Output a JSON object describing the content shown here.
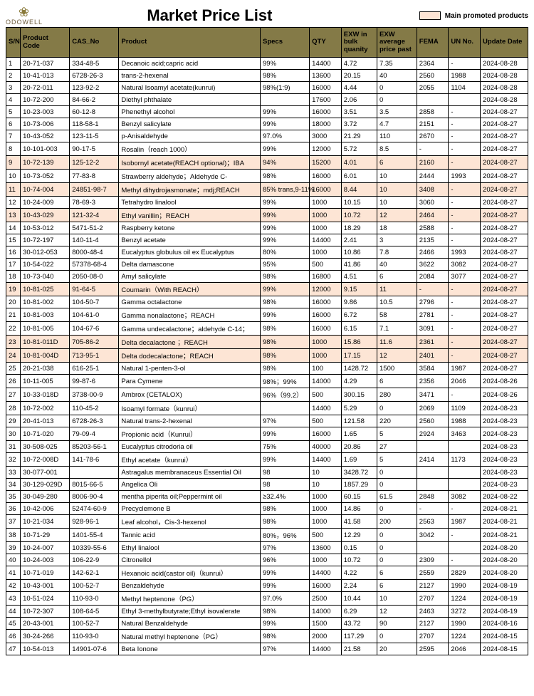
{
  "brand": "ODOWELL",
  "title": "Market Price List",
  "legend": "Main promoted products",
  "colors": {
    "header_bg": "#847a47",
    "highlight_bg": "#fde5d5",
    "border": "#000000",
    "page_bg": "#ffffff"
  },
  "columns": [
    "S/N",
    "Product Code",
    "CAS_No",
    "Product",
    "Specs",
    "QTY",
    "EXW in bulk quanity",
    "EXW average price past",
    "FEMA",
    "UN No.",
    "Update Date"
  ],
  "rows": [
    {
      "hl": false,
      "c": [
        "1",
        "20-71-037",
        "334-48-5",
        "Decanoic acid;capric acid",
        "99%",
        "14400",
        "4.72",
        "7.35",
        "2364",
        "-",
        "2024-08-28"
      ]
    },
    {
      "hl": false,
      "c": [
        "2",
        "10-41-013",
        "6728-26-3",
        "trans-2-hexenal",
        "98%",
        "13600",
        "20.15",
        "40",
        "2560",
        "1988",
        "2024-08-28"
      ]
    },
    {
      "hl": false,
      "c": [
        "3",
        "20-72-011",
        "123-92-2",
        "Natural Isoamyl acetate(kunrui)",
        "98%(1:9)",
        "16000",
        "4.44",
        "0",
        "2055",
        "1104",
        "2024-08-28"
      ]
    },
    {
      "hl": false,
      "c": [
        "4",
        "10-72-200",
        "84-66-2",
        "Diethyl phthalate",
        "",
        "17600",
        "2.06",
        "0",
        "",
        "",
        "2024-08-28"
      ]
    },
    {
      "hl": false,
      "c": [
        "5",
        "10-23-003",
        "60-12-8",
        "Phenethyl alcohol",
        "99%",
        "16000",
        "3.51",
        "3.5",
        "2858",
        "-",
        "2024-08-27"
      ]
    },
    {
      "hl": false,
      "c": [
        "6",
        "10-73-006",
        "118-58-1",
        "Benzyl salicylate",
        "99%",
        "18000",
        "3.72",
        "4.7",
        "2151",
        "-",
        "2024-08-27"
      ]
    },
    {
      "hl": false,
      "c": [
        "7",
        "10-43-052",
        "123-11-5",
        "p-Anisaldehyde",
        "97.0%",
        "3000",
        "21.29",
        "110",
        "2670",
        "-",
        "2024-08-27"
      ]
    },
    {
      "hl": false,
      "c": [
        "8",
        "10-101-003",
        "90-17-5",
        "Rosalin（reach 1000）",
        "99%",
        "12000",
        "5.72",
        "8.5",
        "-",
        "-",
        "2024-08-27"
      ]
    },
    {
      "hl": true,
      "c": [
        "9",
        "10-72-139",
        "125-12-2",
        "Isobornyl acetate(REACH optional)；IBA",
        "94%",
        "15200",
        "4.01",
        "6",
        "2160",
        "-",
        "2024-08-27"
      ]
    },
    {
      "hl": false,
      "c": [
        "10",
        "10-73-052",
        "77-83-8",
        "Strawberry aldehyde；Aldehyde C-",
        "98%",
        "16000",
        "6.01",
        "10",
        "2444",
        "1993",
        "2024-08-27"
      ]
    },
    {
      "hl": true,
      "c": [
        "11",
        "10-74-004",
        "24851-98-7",
        "Methyl dihydrojasmonate；mdj;REACH",
        "85% trans,9-11%",
        "16000",
        "8.44",
        "10",
        "3408",
        "-",
        "2024-08-27"
      ]
    },
    {
      "hl": false,
      "c": [
        "12",
        "10-24-009",
        "78-69-3",
        "Tetrahydro linalool",
        "99%",
        "1000",
        "10.15",
        "10",
        "3060",
        "-",
        "2024-08-27"
      ]
    },
    {
      "hl": true,
      "c": [
        "13",
        "10-43-029",
        "121-32-4",
        "Ethyl vanillin；REACH",
        "99%",
        "1000",
        "10.72",
        "12",
        "2464",
        "-",
        "2024-08-27"
      ]
    },
    {
      "hl": false,
      "c": [
        "14",
        "10-53-012",
        "5471-51-2",
        "Raspberry ketone",
        "99%",
        "1000",
        "18.29",
        "18",
        "2588",
        "-",
        "2024-08-27"
      ]
    },
    {
      "hl": false,
      "c": [
        "15",
        "10-72-197",
        "140-11-4",
        "Benzyl acetate",
        "99%",
        "14400",
        "2.41",
        "3",
        "2135",
        "-",
        "2024-08-27"
      ]
    },
    {
      "hl": false,
      "c": [
        "16",
        "30-012-053",
        "8000-48-4",
        "Eucalyptus globulus oil ex Eucalyptus",
        "80%",
        "1000",
        "10.86",
        "7.8",
        "2466",
        "1993",
        "2024-08-27"
      ]
    },
    {
      "hl": false,
      "c": [
        "17",
        "10-54-022",
        "57378-68-4",
        "Delta damascone",
        "95%",
        "500",
        "41.86",
        "40",
        "3622",
        "3082",
        "2024-08-27"
      ]
    },
    {
      "hl": false,
      "c": [
        "18",
        "10-73-040",
        "2050-08-0",
        "Amyl salicylate",
        "98%",
        "16800",
        "4.51",
        "6",
        "2084",
        "3077",
        "2024-08-27"
      ]
    },
    {
      "hl": true,
      "c": [
        "19",
        "10-81-025",
        "91-64-5",
        "Coumarin（With REACH）",
        "99%",
        "12000",
        "9.15",
        "11",
        "-",
        "-",
        "2024-08-27"
      ]
    },
    {
      "hl": false,
      "c": [
        "20",
        "10-81-002",
        "104-50-7",
        "Gamma octalactone",
        "98%",
        "16000",
        "9.86",
        "10.5",
        "2796",
        "-",
        "2024-08-27"
      ]
    },
    {
      "hl": false,
      "c": [
        "21",
        "10-81-003",
        "104-61-0",
        "Gamma nonalactone；REACH",
        "99%",
        "16000",
        "6.72",
        "58",
        "2781",
        "-",
        "2024-08-27"
      ]
    },
    {
      "hl": false,
      "c": [
        "22",
        "10-81-005",
        "104-67-6",
        "Gamma undecalactone；aldehyde C-14；",
        "98%",
        "16000",
        "6.15",
        "7.1",
        "3091",
        "-",
        "2024-08-27"
      ]
    },
    {
      "hl": true,
      "c": [
        "23",
        "10-81-011D",
        "705-86-2",
        "Delta decalactone ；REACH",
        "98%",
        "1000",
        "15.86",
        "11.6",
        "2361",
        "-",
        "2024-08-27"
      ]
    },
    {
      "hl": true,
      "c": [
        "24",
        "10-81-004D",
        "713-95-1",
        "Delta dodecalactone；REACH",
        "98%",
        "1000",
        "17.15",
        "12",
        "2401",
        "-",
        "2024-08-27"
      ]
    },
    {
      "hl": false,
      "c": [
        "25",
        "20-21-038",
        "616-25-1",
        "Natural 1-penten-3-ol",
        "98%",
        "100",
        "1428.72",
        "1500",
        "3584",
        "1987",
        "2024-08-27"
      ]
    },
    {
      "hl": false,
      "c": [
        "26",
        "10-11-005",
        "99-87-6",
        "Para Cymene",
        "98%；99%",
        "14000",
        "4.29",
        "6",
        "2356",
        "2046",
        "2024-08-26"
      ]
    },
    {
      "hl": false,
      "c": [
        "27",
        "10-33-018D",
        "3738-00-9",
        "Ambrox (CETALOX)",
        "96%（99.2）",
        "500",
        "300.15",
        "280",
        "3471",
        "-",
        "2024-08-26"
      ]
    },
    {
      "hl": false,
      "c": [
        "28",
        "10-72-002",
        "110-45-2",
        "Isoamyl formate（kunrui）",
        "",
        "14400",
        "5.29",
        "0",
        "2069",
        "1109",
        "2024-08-23"
      ]
    },
    {
      "hl": false,
      "c": [
        "29",
        "20-41-013",
        "6728-26-3",
        "Natural trans-2-hexenal",
        "97%",
        "500",
        "121.58",
        "220",
        "2560",
        "1988",
        "2024-08-23"
      ]
    },
    {
      "hl": false,
      "c": [
        "30",
        "10-71-020",
        "79-09-4",
        "Propionic acid（Kunrui）",
        "99%",
        "16000",
        "1.65",
        "5",
        "2924",
        "3463",
        "2024-08-23"
      ]
    },
    {
      "hl": false,
      "c": [
        "31",
        "30-508-025",
        "85203-56-1",
        "Eucalyptus citrodoria oil",
        "75%",
        "40000",
        "20.86",
        "27",
        "",
        "",
        "2024-08-23"
      ]
    },
    {
      "hl": false,
      "c": [
        "32",
        "10-72-008D",
        "141-78-6",
        "Ethyl acetate（kunrui）",
        "99%",
        "14400",
        "1.69",
        "5",
        "2414",
        "1173",
        "2024-08-23"
      ]
    },
    {
      "hl": false,
      "c": [
        "33",
        "30-077-001",
        "",
        "Astragalus membranaceus Essential Oil",
        "98",
        "10",
        "3428.72",
        "0",
        "",
        "",
        "2024-08-23"
      ]
    },
    {
      "hl": false,
      "c": [
        "34",
        "30-129-029D",
        "8015-66-5",
        "Angelica Oli",
        "98",
        "10",
        "1857.29",
        "0",
        "",
        "",
        "2024-08-23"
      ]
    },
    {
      "hl": false,
      "c": [
        "35",
        "30-049-280",
        "8006-90-4",
        "mentha piperita oil;Peppermint oil",
        "≥32.4%",
        "1000",
        "60.15",
        "61.5",
        "2848",
        "3082",
        "2024-08-22"
      ]
    },
    {
      "hl": false,
      "c": [
        "36",
        "10-42-006",
        "52474-60-9",
        "Precyclemone B",
        "98%",
        "1000",
        "14.86",
        "0",
        "-",
        "-",
        "2024-08-21"
      ]
    },
    {
      "hl": false,
      "c": [
        "37",
        "10-21-034",
        "928-96-1",
        "Leaf alcohol，Cis-3-hexenol",
        "98%",
        "1000",
        "41.58",
        "200",
        "2563",
        "1987",
        "2024-08-21"
      ]
    },
    {
      "hl": false,
      "c": [
        "38",
        "10-71-29",
        "1401-55-4",
        "Tannic acid",
        "80%，96%",
        "500",
        "12.29",
        "0",
        "3042",
        "-",
        "2024-08-21"
      ]
    },
    {
      "hl": false,
      "c": [
        "39",
        "10-24-007",
        "10339-55-6",
        "Ethyl linalool",
        "97%",
        "13600",
        "0.15",
        "0",
        "",
        "",
        "2024-08-20"
      ]
    },
    {
      "hl": false,
      "c": [
        "40",
        "10-24-003",
        "106-22-9",
        "Citronellol",
        "96%",
        "1000",
        "10.72",
        "0",
        "2309",
        "-",
        "2024-08-20"
      ]
    },
    {
      "hl": false,
      "c": [
        "41",
        "10-71-019",
        "142-62-1",
        "Hexanoic acid(castor oil)（kunrui）",
        "99%",
        "14400",
        "4.22",
        "6",
        "2559",
        "2829",
        "2024-08-20"
      ]
    },
    {
      "hl": false,
      "c": [
        "42",
        "10-43-001",
        "100-52-7",
        "Benzaldehyde",
        "99%",
        "16000",
        "2.24",
        "6",
        "2127",
        "1990",
        "2024-08-19"
      ]
    },
    {
      "hl": false,
      "c": [
        "43",
        "10-51-024",
        "110-93-0",
        "Methyl heptenone（PG）",
        "97.0%",
        "2500",
        "10.44",
        "10",
        "2707",
        "1224",
        "2024-08-19"
      ]
    },
    {
      "hl": false,
      "c": [
        "44",
        "10-72-307",
        "108-64-5",
        "Ethyl 3-methylbutyrate;Ethyl isovalerate",
        "98%",
        "14000",
        "6.29",
        "12",
        "2463",
        "3272",
        "2024-08-19"
      ]
    },
    {
      "hl": false,
      "c": [
        "45",
        "20-43-001",
        "100-52-7",
        "Natural Benzaldehyde",
        "99%",
        "1500",
        "43.72",
        "90",
        "2127",
        "1990",
        "2024-08-16"
      ]
    },
    {
      "hl": false,
      "c": [
        "46",
        "30-24-266",
        "110-93-0",
        "Natural methyl heptenone（PG）",
        "98%",
        "2000",
        "117.29",
        "0",
        "2707",
        "1224",
        "2024-08-15"
      ]
    },
    {
      "hl": false,
      "c": [
        "47",
        "10-54-013",
        "14901-07-6",
        "Beta Ionone",
        "97%",
        "14400",
        "21.58",
        "20",
        "2595",
        "2046",
        "2024-08-15"
      ]
    }
  ]
}
